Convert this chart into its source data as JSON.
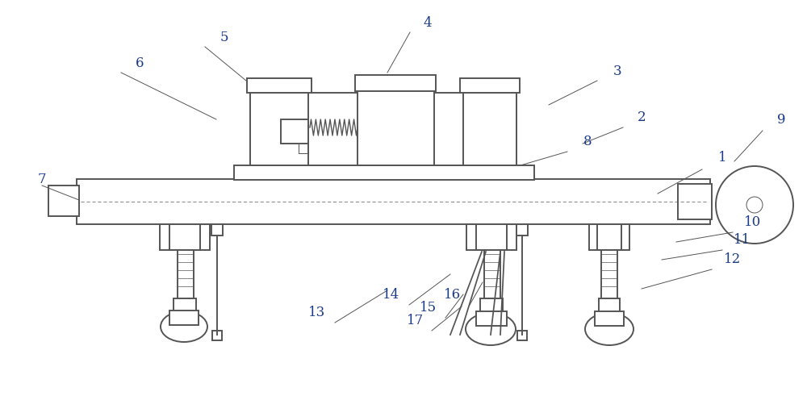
{
  "bg_color": "#ffffff",
  "line_color": "#555555",
  "line_width": 1.4,
  "thin_line": 0.7,
  "label_color": "#1a3a8a",
  "label_fontsize": 12,
  "fig_width": 10.0,
  "fig_height": 4.91
}
